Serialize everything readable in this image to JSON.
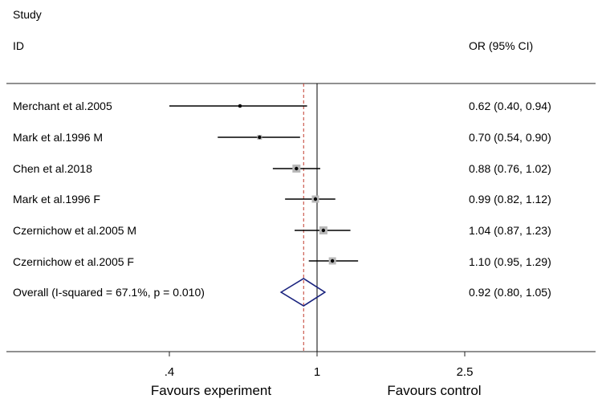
{
  "header": {
    "study_label": "Study",
    "id_label": "ID",
    "or_label": "OR (95% CI)"
  },
  "chart_data": {
    "type": "forest",
    "scale": "log",
    "xticks": [
      0.4,
      1,
      2.5
    ],
    "xtick_labels": [
      ".4",
      "1",
      "2.5"
    ],
    "xlim": [
      0.4,
      2.5
    ],
    "null_line": 1,
    "overall_line": 0.92,
    "xlabel_left": "Favours experiment",
    "xlabel_right": "Favours control",
    "studies": [
      {
        "name": "Merchant et al.2005",
        "or": 0.62,
        "lower": 0.4,
        "upper": 0.94,
        "ci_text": "0.62 (0.40, 0.94)"
      },
      {
        "name": "Mark et al.1996 M",
        "or": 0.7,
        "lower": 0.54,
        "upper": 0.9,
        "ci_text": "0.70 (0.54, 0.90)"
      },
      {
        "name": "Chen et al.2018",
        "or": 0.88,
        "lower": 0.76,
        "upper": 1.02,
        "ci_text": "0.88 (0.76, 1.02)"
      },
      {
        "name": "Mark et al.1996 F",
        "or": 0.99,
        "lower": 0.82,
        "upper": 1.12,
        "ci_text": "0.99 (0.82, 1.12)"
      },
      {
        "name": "Czernichow et al.2005 M",
        "or": 1.04,
        "lower": 0.87,
        "upper": 1.23,
        "ci_text": "1.04 (0.87, 1.23)"
      },
      {
        "name": "Czernichow et al.2005 F",
        "or": 1.1,
        "lower": 0.95,
        "upper": 1.29,
        "ci_text": "1.10 (0.95, 1.29)"
      }
    ],
    "overall": {
      "label": "Overall  (I-squared = 67.1%, p = 0.010)",
      "or": 0.92,
      "lower": 0.8,
      "upper": 1.05,
      "ci_text": "0.92 (0.80, 1.05)"
    }
  }
}
